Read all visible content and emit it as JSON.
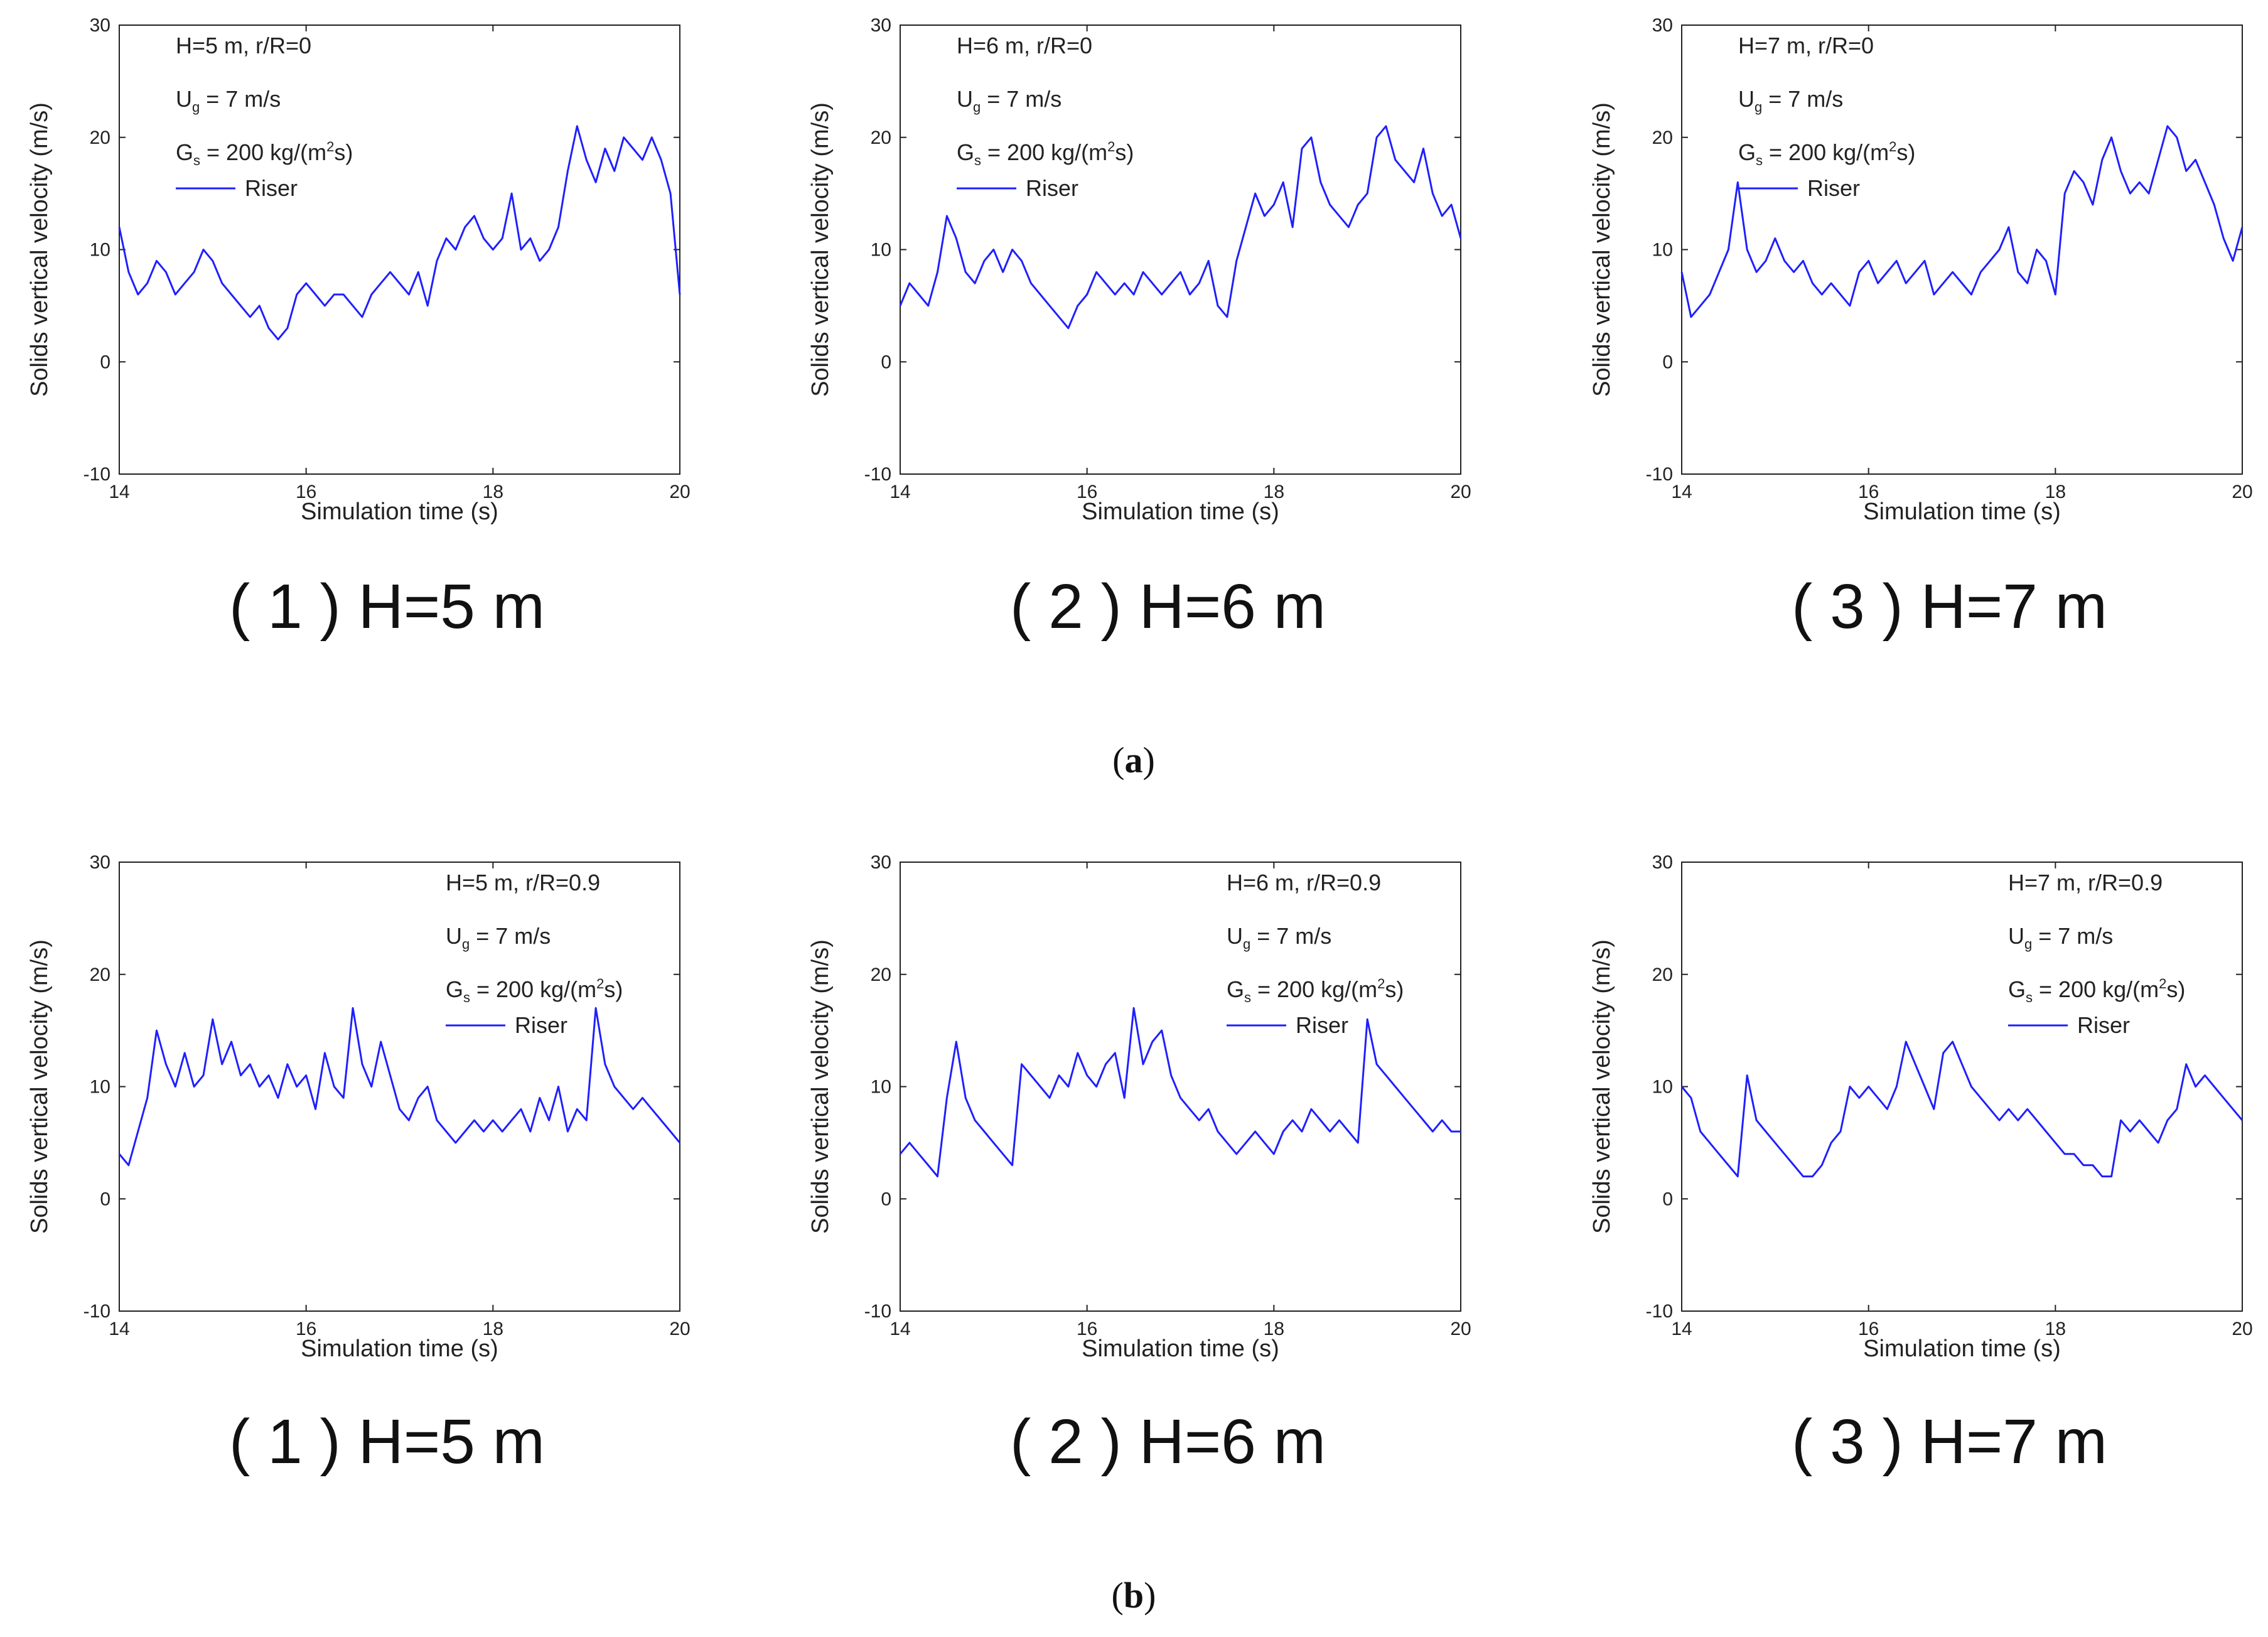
{
  "figure": {
    "panel_labels": [
      {
        "open": "(",
        "letter": "a",
        "close": ")"
      },
      {
        "open": "(",
        "letter": "b",
        "close": ")"
      }
    ]
  },
  "chart_data": [
    {
      "type": "line",
      "row": "a",
      "caption": "( 1 ) H=5 m",
      "xlabel": "Simulation time (s)",
      "ylabel": "Solids vertical velocity (m/s)",
      "xlim": [
        14,
        20
      ],
      "ylim": [
        -10,
        30
      ],
      "xticks": [
        14,
        16,
        18,
        20
      ],
      "yticks": [
        -10,
        0,
        10,
        20,
        30
      ],
      "color": "#1f1fff",
      "annotations": {
        "line1": "H=5 m, r/R=0",
        "ug_main": "U",
        "ug_sub": "g",
        "ug_rest": " = 7 m/s",
        "gs_main": "G",
        "gs_sub": "s",
        "gs_rest": " = 200 kg/(m",
        "gs_sup": "2",
        "gs_end": "s)",
        "legend": "Riser"
      },
      "series": [
        {
          "name": "Riser",
          "x": [
            14.0,
            14.1,
            14.2,
            14.3,
            14.4,
            14.5,
            14.6,
            14.7,
            14.8,
            14.9,
            15.0,
            15.1,
            15.2,
            15.3,
            15.4,
            15.5,
            15.6,
            15.7,
            15.8,
            15.9,
            16.0,
            16.1,
            16.2,
            16.3,
            16.4,
            16.5,
            16.6,
            16.7,
            16.8,
            16.9,
            17.0,
            17.1,
            17.2,
            17.3,
            17.4,
            17.5,
            17.6,
            17.7,
            17.8,
            17.9,
            18.0,
            18.1,
            18.2,
            18.3,
            18.4,
            18.5,
            18.6,
            18.7,
            18.8,
            18.9,
            19.0,
            19.1,
            19.2,
            19.3,
            19.4,
            19.5,
            19.6,
            19.7,
            19.8,
            19.9,
            20.0
          ],
          "y": [
            12,
            8,
            6,
            7,
            9,
            8,
            6,
            7,
            8,
            10,
            9,
            7,
            6,
            5,
            4,
            5,
            3,
            2,
            3,
            6,
            7,
            6,
            5,
            6,
            6,
            5,
            4,
            6,
            7,
            8,
            7,
            6,
            8,
            5,
            9,
            11,
            10,
            12,
            13,
            11,
            10,
            11,
            15,
            10,
            11,
            9,
            10,
            12,
            17,
            21,
            18,
            16,
            19,
            17,
            20,
            19,
            18,
            20,
            18,
            15,
            6
          ]
        }
      ]
    },
    {
      "type": "line",
      "row": "a",
      "caption": "( 2 ) H=6 m",
      "xlabel": "Simulation time (s)",
      "ylabel": "Solids vertical velocity (m/s)",
      "xlim": [
        14,
        20
      ],
      "ylim": [
        -10,
        30
      ],
      "xticks": [
        14,
        16,
        18,
        20
      ],
      "yticks": [
        -10,
        0,
        10,
        20,
        30
      ],
      "color": "#1f1fff",
      "annotations": {
        "line1": "H=6 m, r/R=0",
        "ug_main": "U",
        "ug_sub": "g",
        "ug_rest": " = 7 m/s",
        "gs_main": "G",
        "gs_sub": "s",
        "gs_rest": " = 200 kg/(m",
        "gs_sup": "2",
        "gs_end": "s)",
        "legend": "Riser"
      },
      "series": [
        {
          "name": "Riser",
          "x": [
            14.0,
            14.1,
            14.2,
            14.3,
            14.4,
            14.5,
            14.6,
            14.7,
            14.8,
            14.9,
            15.0,
            15.1,
            15.2,
            15.3,
            15.4,
            15.5,
            15.6,
            15.7,
            15.8,
            15.9,
            16.0,
            16.1,
            16.2,
            16.3,
            16.4,
            16.5,
            16.6,
            16.7,
            16.8,
            16.9,
            17.0,
            17.1,
            17.2,
            17.3,
            17.4,
            17.5,
            17.6,
            17.7,
            17.8,
            17.9,
            18.0,
            18.1,
            18.2,
            18.3,
            18.4,
            18.5,
            18.6,
            18.7,
            18.8,
            18.9,
            19.0,
            19.1,
            19.2,
            19.3,
            19.4,
            19.5,
            19.6,
            19.7,
            19.8,
            19.9,
            20.0
          ],
          "y": [
            5,
            7,
            6,
            5,
            8,
            13,
            11,
            8,
            7,
            9,
            10,
            8,
            10,
            9,
            7,
            6,
            5,
            4,
            3,
            5,
            6,
            8,
            7,
            6,
            7,
            6,
            8,
            7,
            6,
            7,
            8,
            6,
            7,
            9,
            5,
            4,
            9,
            12,
            15,
            13,
            14,
            16,
            12,
            19,
            20,
            16,
            14,
            13,
            12,
            14,
            15,
            20,
            21,
            18,
            17,
            16,
            19,
            15,
            13,
            14,
            11
          ]
        }
      ]
    },
    {
      "type": "line",
      "row": "a",
      "caption": "( 3 ) H=7 m",
      "xlabel": "Simulation time (s)",
      "ylabel": "Solids vertical velocity (m/s)",
      "xlim": [
        14,
        20
      ],
      "ylim": [
        -10,
        30
      ],
      "xticks": [
        14,
        16,
        18,
        20
      ],
      "yticks": [
        -10,
        0,
        10,
        20,
        30
      ],
      "color": "#1f1fff",
      "annotations": {
        "line1": "H=7 m, r/R=0",
        "ug_main": "U",
        "ug_sub": "g",
        "ug_rest": " = 7 m/s",
        "gs_main": "G",
        "gs_sub": "s",
        "gs_rest": " = 200 kg/(m",
        "gs_sup": "2",
        "gs_end": "s)",
        "legend": "Riser"
      },
      "series": [
        {
          "name": "Riser",
          "x": [
            14.0,
            14.1,
            14.2,
            14.3,
            14.4,
            14.5,
            14.6,
            14.7,
            14.8,
            14.9,
            15.0,
            15.1,
            15.2,
            15.3,
            15.4,
            15.5,
            15.6,
            15.7,
            15.8,
            15.9,
            16.0,
            16.1,
            16.2,
            16.3,
            16.4,
            16.5,
            16.6,
            16.7,
            16.8,
            16.9,
            17.0,
            17.1,
            17.2,
            17.3,
            17.4,
            17.5,
            17.6,
            17.7,
            17.8,
            17.9,
            18.0,
            18.1,
            18.2,
            18.3,
            18.4,
            18.5,
            18.6,
            18.7,
            18.8,
            18.9,
            19.0,
            19.1,
            19.2,
            19.3,
            19.4,
            19.5,
            19.6,
            19.7,
            19.8,
            19.9,
            20.0
          ],
          "y": [
            8,
            4,
            5,
            6,
            8,
            10,
            16,
            10,
            8,
            9,
            11,
            9,
            8,
            9,
            7,
            6,
            7,
            6,
            5,
            8,
            9,
            7,
            8,
            9,
            7,
            8,
            9,
            6,
            7,
            8,
            7,
            6,
            8,
            9,
            10,
            12,
            8,
            7,
            10,
            9,
            6,
            15,
            17,
            16,
            14,
            18,
            20,
            17,
            15,
            16,
            15,
            18,
            21,
            20,
            17,
            18,
            16,
            14,
            11,
            9,
            12
          ]
        }
      ]
    },
    {
      "type": "line",
      "row": "b",
      "caption": "( 1 ) H=5 m",
      "xlabel": "Simulation time (s)",
      "ylabel": "Solids vertical velocity (m/s)",
      "xlim": [
        14,
        20
      ],
      "ylim": [
        -10,
        30
      ],
      "xticks": [
        14,
        16,
        18,
        20
      ],
      "yticks": [
        -10,
        0,
        10,
        20,
        30
      ],
      "color": "#1f1fff",
      "annotations": {
        "line1": "H=5 m, r/R=0.9",
        "ug_main": "U",
        "ug_sub": "g",
        "ug_rest": " = 7 m/s",
        "gs_main": "G",
        "gs_sub": "s",
        "gs_rest": " = 200 kg/(m",
        "gs_sup": "2",
        "gs_end": "s)",
        "legend": "Riser"
      },
      "series": [
        {
          "name": "Riser",
          "x": [
            14.0,
            14.1,
            14.2,
            14.3,
            14.4,
            14.5,
            14.6,
            14.7,
            14.8,
            14.9,
            15.0,
            15.1,
            15.2,
            15.3,
            15.4,
            15.5,
            15.6,
            15.7,
            15.8,
            15.9,
            16.0,
            16.1,
            16.2,
            16.3,
            16.4,
            16.5,
            16.6,
            16.7,
            16.8,
            16.9,
            17.0,
            17.1,
            17.2,
            17.3,
            17.4,
            17.5,
            17.6,
            17.7,
            17.8,
            17.9,
            18.0,
            18.1,
            18.2,
            18.3,
            18.4,
            18.5,
            18.6,
            18.7,
            18.8,
            18.9,
            19.0,
            19.1,
            19.2,
            19.3,
            19.4,
            19.5,
            19.6,
            19.7,
            19.8,
            19.9,
            20.0
          ],
          "y": [
            4,
            3,
            6,
            9,
            15,
            12,
            10,
            13,
            10,
            11,
            16,
            12,
            14,
            11,
            12,
            10,
            11,
            9,
            12,
            10,
            11,
            8,
            13,
            10,
            9,
            17,
            12,
            10,
            14,
            11,
            8,
            7,
            9,
            10,
            7,
            6,
            5,
            6,
            7,
            6,
            7,
            6,
            7,
            8,
            6,
            9,
            7,
            10,
            6,
            8,
            7,
            17,
            12,
            10,
            9,
            8,
            9,
            8,
            7,
            6,
            5
          ]
        }
      ]
    },
    {
      "type": "line",
      "row": "b",
      "caption": "( 2 ) H=6 m",
      "xlabel": "Simulation time (s)",
      "ylabel": "Solids vertical velocity (m/s)",
      "xlim": [
        14,
        20
      ],
      "ylim": [
        -10,
        30
      ],
      "xticks": [
        14,
        16,
        18,
        20
      ],
      "yticks": [
        -10,
        0,
        10,
        20,
        30
      ],
      "color": "#1f1fff",
      "annotations": {
        "line1": "H=6 m, r/R=0.9",
        "ug_main": "U",
        "ug_sub": "g",
        "ug_rest": " = 7 m/s",
        "gs_main": "G",
        "gs_sub": "s",
        "gs_rest": " = 200 kg/(m",
        "gs_sup": "2",
        "gs_end": "s)",
        "legend": "Riser"
      },
      "series": [
        {
          "name": "Riser",
          "x": [
            14.0,
            14.1,
            14.2,
            14.3,
            14.4,
            14.5,
            14.6,
            14.7,
            14.8,
            14.9,
            15.0,
            15.1,
            15.2,
            15.3,
            15.4,
            15.5,
            15.6,
            15.7,
            15.8,
            15.9,
            16.0,
            16.1,
            16.2,
            16.3,
            16.4,
            16.5,
            16.6,
            16.7,
            16.8,
            16.9,
            17.0,
            17.1,
            17.2,
            17.3,
            17.4,
            17.5,
            17.6,
            17.7,
            17.8,
            17.9,
            18.0,
            18.1,
            18.2,
            18.3,
            18.4,
            18.5,
            18.6,
            18.7,
            18.8,
            18.9,
            19.0,
            19.1,
            19.2,
            19.3,
            19.4,
            19.5,
            19.6,
            19.7,
            19.8,
            19.9,
            20.0
          ],
          "y": [
            4,
            5,
            4,
            3,
            2,
            9,
            14,
            9,
            7,
            6,
            5,
            4,
            3,
            12,
            11,
            10,
            9,
            11,
            10,
            13,
            11,
            10,
            12,
            13,
            9,
            17,
            12,
            14,
            15,
            11,
            9,
            8,
            7,
            8,
            6,
            5,
            4,
            5,
            6,
            5,
            4,
            6,
            7,
            6,
            8,
            7,
            6,
            7,
            6,
            5,
            16,
            12,
            11,
            10,
            9,
            8,
            7,
            6,
            7,
            6,
            6
          ]
        }
      ]
    },
    {
      "type": "line",
      "row": "b",
      "caption": "( 3 ) H=7 m",
      "xlabel": "Simulation time (s)",
      "ylabel": "Solids vertical velocity (m/s)",
      "xlim": [
        14,
        20
      ],
      "ylim": [
        -10,
        30
      ],
      "xticks": [
        14,
        16,
        18,
        20
      ],
      "yticks": [
        -10,
        0,
        10,
        20,
        30
      ],
      "color": "#1f1fff",
      "annotations": {
        "line1": "H=7 m, r/R=0.9",
        "ug_main": "U",
        "ug_sub": "g",
        "ug_rest": " = 7 m/s",
        "gs_main": "G",
        "gs_sub": "s",
        "gs_rest": " = 200 kg/(m",
        "gs_sup": "2",
        "gs_end": "s)",
        "legend": "Riser"
      },
      "series": [
        {
          "name": "Riser",
          "x": [
            14.0,
            14.1,
            14.2,
            14.3,
            14.4,
            14.5,
            14.6,
            14.7,
            14.8,
            14.9,
            15.0,
            15.1,
            15.2,
            15.3,
            15.4,
            15.5,
            15.6,
            15.7,
            15.8,
            15.9,
            16.0,
            16.1,
            16.2,
            16.3,
            16.4,
            16.5,
            16.6,
            16.7,
            16.8,
            16.9,
            17.0,
            17.1,
            17.2,
            17.3,
            17.4,
            17.5,
            17.6,
            17.7,
            17.8,
            17.9,
            18.0,
            18.1,
            18.2,
            18.3,
            18.4,
            18.5,
            18.6,
            18.7,
            18.8,
            18.9,
            19.0,
            19.1,
            19.2,
            19.3,
            19.4,
            19.5,
            19.6,
            19.7,
            19.8,
            19.9,
            20.0
          ],
          "y": [
            10,
            9,
            6,
            5,
            4,
            3,
            2,
            11,
            7,
            6,
            5,
            4,
            3,
            2,
            2,
            3,
            5,
            6,
            10,
            9,
            10,
            9,
            8,
            10,
            14,
            12,
            10,
            8,
            13,
            14,
            12,
            10,
            9,
            8,
            7,
            8,
            7,
            8,
            7,
            6,
            5,
            4,
            4,
            3,
            3,
            2,
            2,
            7,
            6,
            7,
            6,
            5,
            7,
            8,
            12,
            10,
            11,
            10,
            9,
            8,
            7
          ]
        }
      ]
    }
  ]
}
